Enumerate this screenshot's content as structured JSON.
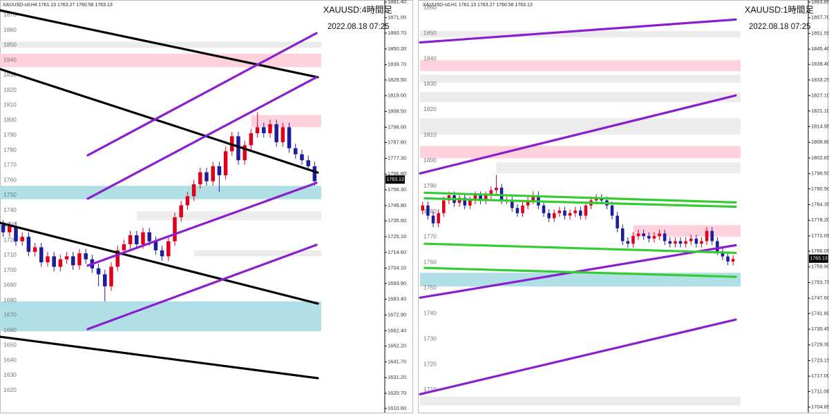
{
  "chart_data": [
    {
      "type": "candlestick",
      "header": "XAUUSD-cd,H4  1761.13 1763.27 1760.56 1763.13",
      "title": "XAUUSD:4時間足",
      "subtitle": "2022.08.18 07:25",
      "last_price": 1763.13,
      "up_color": "#e0001b",
      "down_color": "#1c1c9c",
      "ylim": [
        1610.6,
        1881.4
      ],
      "yticks": [
        {
          "value": 1881.4,
          "label": "1881.40"
        },
        {
          "value": 1871.0,
          "label": "1871.00"
        },
        {
          "value": 1860.7,
          "label": "1860.70"
        },
        {
          "value": 1850.2,
          "label": "1850.20"
        },
        {
          "value": 1839.7,
          "label": "1839.70"
        },
        {
          "value": 1829.5,
          "label": "1829.50"
        },
        {
          "value": 1819.0,
          "label": "1819.00"
        },
        {
          "value": 1808.5,
          "label": "1808.50"
        },
        {
          "value": 1798.0,
          "label": "1798.00"
        },
        {
          "value": 1787.8,
          "label": "1787.80"
        },
        {
          "value": 1777.3,
          "label": "1777.30"
        },
        {
          "value": 1766.8,
          "label": "1766.80"
        },
        {
          "value": 1756.3,
          "label": "1756.30"
        },
        {
          "value": 1745.8,
          "label": "1745.80"
        },
        {
          "value": 1735.6,
          "label": "1735.60"
        },
        {
          "value": 1725.1,
          "label": "1725.10"
        },
        {
          "value": 1714.6,
          "label": "1714.60"
        },
        {
          "value": 1704.1,
          "label": "1704.10"
        },
        {
          "value": 1693.9,
          "label": "1693.90"
        },
        {
          "value": 1683.4,
          "label": "1683.40"
        },
        {
          "value": 1672.9,
          "label": "1672.90"
        },
        {
          "value": 1662.4,
          "label": "1662.40"
        },
        {
          "value": 1652.2,
          "label": "1652.20"
        },
        {
          "value": 1641.7,
          "label": "1641.70"
        },
        {
          "value": 1631.2,
          "label": "1631.20"
        },
        {
          "value": 1620.7,
          "label": "1620.70"
        },
        {
          "value": 1610.6,
          "label": "1610.60"
        }
      ],
      "levels": [
        1870,
        1860,
        1850,
        1840,
        1830,
        1820,
        1810,
        1800,
        1790,
        1780,
        1770,
        1760,
        1750,
        1740,
        1730,
        1720,
        1710,
        1700,
        1690,
        1680,
        1670,
        1660,
        1650,
        1640,
        1630,
        1620
      ],
      "zones": [
        {
          "low": 1851,
          "high": 1855,
          "color": "#ececec"
        },
        {
          "low": 1838,
          "high": 1847,
          "color": "#ffd1dc"
        },
        {
          "low": 1798,
          "high": 1806,
          "color": "#ffd1dc",
          "start": 39
        },
        {
          "low": 1750,
          "high": 1759,
          "color": "#b0e0e6"
        },
        {
          "low": 1736,
          "high": 1742,
          "color": "#ececec",
          "start": 21
        },
        {
          "low": 1712,
          "high": 1716,
          "color": "#ececec",
          "start": 30
        },
        {
          "low": 1662,
          "high": 1682,
          "color": "#b0e0e6"
        }
      ],
      "trendlines": [
        {
          "color": "#000000",
          "x": [
            -0.5,
            49.5
          ],
          "values": [
            1875.9,
            1831.3
          ]
        },
        {
          "color": "#000000",
          "x": [
            -0.5,
            49.5
          ],
          "values": [
            1836.8,
            1767.8
          ]
        },
        {
          "color": "#000000",
          "x": [
            -0.5,
            49.5
          ],
          "values": [
            1734.3,
            1680.5
          ]
        },
        {
          "color": "#000000",
          "x": [
            -0.5,
            49.5
          ],
          "values": [
            1658.4,
            1630.8
          ]
        },
        {
          "color": "#8b1ccf",
          "x": [
            13.3,
            49.3
          ],
          "values": [
            1779.3,
            1860.7
          ]
        },
        {
          "color": "#8b1ccf",
          "x": [
            13.3,
            49.3
          ],
          "values": [
            1750.4,
            1831.3
          ]
        },
        {
          "color": "#8b1ccf",
          "x": [
            13.3,
            49.3
          ],
          "values": [
            1705.8,
            1760.9
          ]
        },
        {
          "color": "#8b1ccf",
          "x": [
            13.3,
            49.3
          ],
          "values": [
            1663.5,
            1719.6
          ]
        }
      ],
      "ohlc": [
        [
          1733,
          1736,
          1725,
          1728
        ],
        [
          1728,
          1735,
          1725,
          1732
        ],
        [
          1732,
          1735,
          1719,
          1722
        ],
        [
          1722,
          1728,
          1719,
          1725
        ],
        [
          1725,
          1728,
          1712,
          1715
        ],
        [
          1715,
          1721,
          1712,
          1718
        ],
        [
          1718,
          1721,
          1705,
          1708
        ],
        [
          1708,
          1715,
          1705,
          1712
        ],
        [
          1712,
          1715,
          1702,
          1705
        ],
        [
          1705,
          1713,
          1702,
          1710
        ],
        [
          1710,
          1715,
          1707,
          1712
        ],
        [
          1712,
          1715,
          1703,
          1706
        ],
        [
          1706,
          1717,
          1703,
          1714
        ],
        [
          1714,
          1717,
          1707,
          1710
        ],
        [
          1710,
          1713,
          1701,
          1704
        ],
        [
          1704,
          1707,
          1692,
          1700
        ],
        [
          1700,
          1703,
          1682,
          1692
        ],
        [
          1692,
          1708,
          1689,
          1705
        ],
        [
          1705,
          1719,
          1702,
          1716
        ],
        [
          1716,
          1723,
          1713,
          1720
        ],
        [
          1720,
          1729,
          1717,
          1726
        ],
        [
          1726,
          1729,
          1717,
          1720
        ],
        [
          1720,
          1731,
          1717,
          1728
        ],
        [
          1728,
          1731,
          1719,
          1722
        ],
        [
          1722,
          1725,
          1713,
          1716
        ],
        [
          1716,
          1719,
          1709,
          1712
        ],
        [
          1712,
          1725,
          1709,
          1722
        ],
        [
          1722,
          1741,
          1719,
          1738
        ],
        [
          1738,
          1749,
          1735,
          1746
        ],
        [
          1746,
          1755,
          1743,
          1752
        ],
        [
          1752,
          1763,
          1749,
          1760
        ],
        [
          1760,
          1771,
          1757,
          1768
        ],
        [
          1768,
          1771,
          1759,
          1762
        ],
        [
          1762,
          1775,
          1759,
          1772
        ],
        [
          1772,
          1775,
          1755,
          1766
        ],
        [
          1766,
          1785,
          1763,
          1782
        ],
        [
          1782,
          1795,
          1779,
          1792
        ],
        [
          1792,
          1795,
          1773,
          1776
        ],
        [
          1776,
          1789,
          1773,
          1786
        ],
        [
          1786,
          1797,
          1783,
          1794
        ],
        [
          1794,
          1808,
          1791,
          1798
        ],
        [
          1798,
          1801,
          1791,
          1794
        ],
        [
          1794,
          1803,
          1791,
          1800
        ],
        [
          1800,
          1803,
          1785,
          1788
        ],
        [
          1788,
          1801,
          1785,
          1798
        ],
        [
          1798,
          1801,
          1781,
          1784
        ],
        [
          1784,
          1787,
          1777,
          1780
        ],
        [
          1780,
          1783,
          1773,
          1776
        ],
        [
          1776,
          1779,
          1769,
          1772
        ],
        [
          1772,
          1775,
          1759,
          1762
        ]
      ]
    },
    {
      "type": "candlestick",
      "header": "XAUUSD-cd,H1  1761.13 1763.27 1760.56 1763.13",
      "title": "XAUUSD:1時間足",
      "subtitle": "2022.08.18 07:25",
      "last_price": 1763.13,
      "up_color": "#e0001b",
      "down_color": "#1c1c9c",
      "ylim": [
        1704.85,
        1863.85
      ],
      "yticks": [
        {
          "value": 1863.85,
          "label": "1863.85"
        },
        {
          "value": 1857.7,
          "label": "1857.70"
        },
        {
          "value": 1851.55,
          "label": "1851.55"
        },
        {
          "value": 1845.4,
          "label": "1845.40"
        },
        {
          "value": 1839.4,
          "label": "1839.40"
        },
        {
          "value": 1833.25,
          "label": "1833.25"
        },
        {
          "value": 1827.1,
          "label": "1827.10"
        },
        {
          "value": 1821.1,
          "label": "1821.10"
        },
        {
          "value": 1814.95,
          "label": "1814.95"
        },
        {
          "value": 1808.8,
          "label": "1808.80"
        },
        {
          "value": 1802.65,
          "label": "1802.65"
        },
        {
          "value": 1796.5,
          "label": "1796.50"
        },
        {
          "value": 1790.5,
          "label": "1790.50"
        },
        {
          "value": 1784.35,
          "label": "1784.35"
        },
        {
          "value": 1778.2,
          "label": "1778.20"
        },
        {
          "value": 1772.05,
          "label": "1772.05"
        },
        {
          "value": 1766.05,
          "label": "1766.05"
        },
        {
          "value": 1759.9,
          "label": "1759.90"
        },
        {
          "value": 1753.75,
          "label": "1753.75"
        },
        {
          "value": 1747.6,
          "label": "1747.60"
        },
        {
          "value": 1741.6,
          "label": "1741.60"
        },
        {
          "value": 1735.45,
          "label": "1735.45"
        },
        {
          "value": 1729.3,
          "label": "1729.30"
        },
        {
          "value": 1723.15,
          "label": "1723.15"
        },
        {
          "value": 1717.0,
          "label": "1717.00"
        },
        {
          "value": 1711.0,
          "label": "1711.00"
        },
        {
          "value": 1704.85,
          "label": "1704.85"
        }
      ],
      "levels": [
        1860,
        1850,
        1840,
        1830,
        1820,
        1810,
        1800,
        1790,
        1780,
        1770,
        1760,
        1750,
        1740,
        1730,
        1720,
        1710
      ],
      "zones": [
        {
          "low": 1850,
          "high": 1852.5,
          "color": "#ececec"
        },
        {
          "low": 1836.7,
          "high": 1841,
          "color": "#ffd1dc"
        },
        {
          "low": 1832.1,
          "high": 1835.3,
          "color": "#ececec"
        },
        {
          "low": 1824.5,
          "high": 1828.5,
          "color": "#ececec"
        },
        {
          "low": 1811.8,
          "high": 1818.3,
          "color": "#ececec"
        },
        {
          "low": 1802.5,
          "high": 1807.4,
          "color": "#ffd1dc"
        },
        {
          "low": 1796.6,
          "high": 1800.9,
          "color": "#ececec",
          "start": 14
        },
        {
          "low": 1771.7,
          "high": 1776.3,
          "color": "#ffd1dc",
          "start": 40
        },
        {
          "low": 1752.2,
          "high": 1757.6,
          "color": "#b0e0e6"
        },
        {
          "low": 1705.5,
          "high": 1709,
          "color": "#ececec"
        }
      ],
      "trendlines": [
        {
          "color": "#8b1ccf",
          "x": [
            -0.5,
            59.5
          ],
          "values": [
            1848.0,
            1857.0
          ]
        },
        {
          "color": "#8b1ccf",
          "x": [
            -0.5,
            59.5
          ],
          "values": [
            1796.6,
            1827.2
          ]
        },
        {
          "color": "#8b1ccf",
          "x": [
            -0.5,
            59.5
          ],
          "values": [
            1747.8,
            1768.4
          ]
        },
        {
          "color": "#8b1ccf",
          "x": [
            -0.5,
            59.5
          ],
          "values": [
            1709.9,
            1739.2
          ]
        },
        {
          "color": "#33cc33",
          "x": [
            0.4,
            59.5
          ],
          "values": [
            1789.0,
            1785.2
          ]
        },
        {
          "color": "#33cc33",
          "x": [
            0.4,
            59.5
          ],
          "values": [
            1786.8,
            1783.5
          ]
        },
        {
          "color": "#33cc33",
          "x": [
            0.4,
            59.5
          ],
          "values": [
            1769.0,
            1765.4
          ]
        },
        {
          "color": "#33cc33",
          "x": [
            0.4,
            59.5
          ],
          "values": [
            1759.5,
            1756.0
          ]
        }
      ],
      "ohlc": [
        [
          1782,
          1785.5,
          1780.5,
          1784
        ],
        [
          1784,
          1785.5,
          1778.5,
          1780
        ],
        [
          1780,
          1781.5,
          1775.5,
          1777
        ],
        [
          1777,
          1782.5,
          1775.5,
          1781
        ],
        [
          1781,
          1787.5,
          1779.5,
          1786
        ],
        [
          1786,
          1789.5,
          1784.5,
          1788
        ],
        [
          1788,
          1789.5,
          1783.5,
          1785
        ],
        [
          1785,
          1788.5,
          1783.5,
          1787
        ],
        [
          1787,
          1788.5,
          1782.5,
          1784
        ],
        [
          1784,
          1787.5,
          1782.5,
          1786
        ],
        [
          1786,
          1789.5,
          1784.5,
          1788
        ],
        [
          1788,
          1789.5,
          1784.5,
          1786
        ],
        [
          1786,
          1789.5,
          1784.5,
          1788
        ],
        [
          1788,
          1791.5,
          1786.5,
          1790
        ],
        [
          1790,
          1796,
          1788.5,
          1791
        ],
        [
          1791,
          1792.5,
          1784.5,
          1786
        ],
        [
          1786,
          1787.5,
          1784.5,
          1786
        ],
        [
          1786,
          1787.5,
          1781.5,
          1783
        ],
        [
          1783,
          1784.5,
          1779.5,
          1781
        ],
        [
          1781,
          1785.5,
          1779.5,
          1784
        ],
        [
          1784,
          1787.5,
          1782.5,
          1786
        ],
        [
          1786,
          1789.5,
          1784.5,
          1788
        ],
        [
          1788,
          1789.5,
          1782.5,
          1784
        ],
        [
          1784,
          1785.5,
          1779.5,
          1781
        ],
        [
          1781,
          1782.5,
          1777.5,
          1779
        ],
        [
          1779,
          1782.5,
          1777.5,
          1781
        ],
        [
          1781,
          1783.5,
          1779.5,
          1782
        ],
        [
          1782,
          1783.5,
          1778.5,
          1780
        ],
        [
          1780,
          1782.5,
          1778.5,
          1781
        ],
        [
          1781,
          1783.5,
          1779.5,
          1782
        ],
        [
          1782,
          1783.5,
          1778.5,
          1780
        ],
        [
          1780,
          1785.5,
          1778.5,
          1784
        ],
        [
          1784,
          1787.5,
          1782.5,
          1786
        ],
        [
          1786,
          1788.5,
          1784.5,
          1787
        ],
        [
          1787,
          1788.5,
          1784.5,
          1786
        ],
        [
          1786,
          1787.5,
          1782.5,
          1784
        ],
        [
          1784,
          1785.5,
          1778.5,
          1780
        ],
        [
          1780,
          1781.5,
          1773.5,
          1775
        ],
        [
          1775,
          1776.5,
          1768.5,
          1770
        ],
        [
          1770,
          1771.5,
          1767.5,
          1769
        ],
        [
          1769,
          1773.5,
          1767.5,
          1772
        ],
        [
          1772,
          1774.5,
          1770.5,
          1773
        ],
        [
          1773,
          1774.5,
          1770.5,
          1772
        ],
        [
          1772,
          1773.5,
          1769.5,
          1771
        ],
        [
          1771,
          1773.5,
          1769.5,
          1772
        ],
        [
          1772,
          1774.5,
          1770.5,
          1773
        ],
        [
          1773,
          1774.5,
          1768.5,
          1770
        ],
        [
          1770,
          1771.5,
          1767.5,
          1769
        ],
        [
          1769,
          1771.5,
          1767.5,
          1770
        ],
        [
          1770,
          1771.5,
          1767.5,
          1769
        ],
        [
          1769,
          1771.5,
          1767.5,
          1770
        ],
        [
          1770,
          1772.5,
          1768.5,
          1771
        ],
        [
          1771,
          1772.5,
          1767.5,
          1769
        ],
        [
          1769,
          1771.5,
          1767.5,
          1770
        ],
        [
          1770,
          1775.5,
          1768.5,
          1774
        ],
        [
          1774,
          1775.5,
          1768.5,
          1770
        ],
        [
          1770,
          1771.5,
          1764.5,
          1766
        ],
        [
          1766,
          1767.5,
          1762.5,
          1764
        ],
        [
          1764,
          1765.5,
          1760.5,
          1762
        ],
        [
          1762,
          1764.5,
          1760.5,
          1763
        ]
      ]
    }
  ]
}
